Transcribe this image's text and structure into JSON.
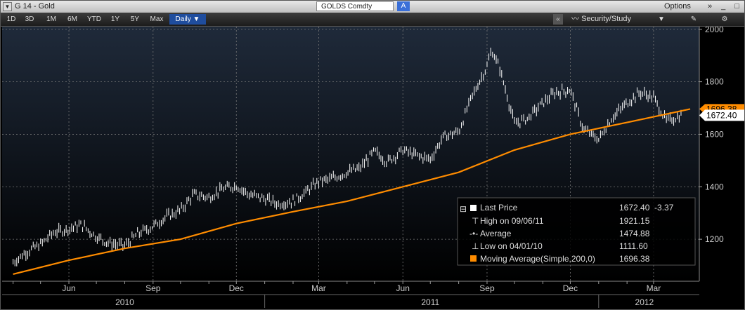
{
  "window": {
    "title": "G 14 - Gold",
    "ticker": "GOLDS Comdty",
    "ticker_badge": "A",
    "options_label": "Options",
    "controls": "» _ □ ×",
    "menu_glyph": "▼"
  },
  "toolbar": {
    "periods": [
      "1D",
      "3D",
      "1M",
      "6M",
      "YTD",
      "1Y",
      "5Y",
      "Max"
    ],
    "frequency": "Daily ▼",
    "collapse": "«",
    "security_study": "Security/Study"
  },
  "colors": {
    "price": "#ffffff",
    "moving_average": "#ff8c00",
    "background": "#000000",
    "plot_top": "#1f2a3a"
  },
  "chart_data": {
    "type": "line",
    "x_unit": "month",
    "x_axis_months": [
      "Jun",
      "Sep",
      "Dec",
      "Mar",
      "Jun",
      "Sep",
      "Dec",
      "Mar"
    ],
    "x_axis_years": [
      "2010",
      "2011",
      "2012"
    ],
    "y_ticks": [
      1200,
      1400,
      1600,
      1800,
      2000
    ],
    "ylim": [
      1040,
      2010
    ],
    "grid": true,
    "series": [
      {
        "name": "Last Price",
        "type": "ohlc",
        "x": [
          "2010-04-01",
          "2010-04-15",
          "2010-05-01",
          "2010-05-15",
          "2010-06-01",
          "2010-06-15",
          "2010-07-01",
          "2010-07-15",
          "2010-08-01",
          "2010-08-15",
          "2010-09-01",
          "2010-09-15",
          "2010-10-01",
          "2010-10-15",
          "2010-11-01",
          "2010-11-15",
          "2010-12-01",
          "2010-12-15",
          "2011-01-01",
          "2011-01-15",
          "2011-02-01",
          "2011-02-15",
          "2011-03-01",
          "2011-03-15",
          "2011-04-01",
          "2011-04-15",
          "2011-05-01",
          "2011-05-15",
          "2011-06-01",
          "2011-06-15",
          "2011-07-01",
          "2011-07-15",
          "2011-08-01",
          "2011-08-15",
          "2011-09-01",
          "2011-09-06",
          "2011-09-15",
          "2011-10-01",
          "2011-10-15",
          "2011-11-01",
          "2011-11-15",
          "2011-12-01",
          "2011-12-15",
          "2012-01-01",
          "2012-01-15",
          "2012-02-01",
          "2012-02-15",
          "2012-03-01",
          "2012-03-15",
          "2012-04-01"
        ],
        "y": [
          1112,
          1150,
          1180,
          1225,
          1240,
          1255,
          1210,
          1185,
          1175,
          1220,
          1250,
          1285,
          1310,
          1370,
          1360,
          1390,
          1405,
          1370,
          1355,
          1335,
          1345,
          1380,
          1420,
          1430,
          1455,
          1470,
          1535,
          1495,
          1540,
          1520,
          1505,
          1590,
          1610,
          1740,
          1860,
          1921,
          1850,
          1640,
          1660,
          1720,
          1760,
          1770,
          1620,
          1580,
          1660,
          1720,
          1760,
          1740,
          1650,
          1672.4
        ]
      },
      {
        "name": "Moving Average(Simple,200,0)",
        "type": "line",
        "x": [
          "2010-04-01",
          "2010-06-01",
          "2010-08-01",
          "2010-10-01",
          "2010-12-01",
          "2011-02-01",
          "2011-04-01",
          "2011-06-01",
          "2011-08-01",
          "2011-10-01",
          "2011-12-01",
          "2012-02-01",
          "2012-04-10"
        ],
        "y": [
          1067,
          1120,
          1165,
          1200,
          1260,
          1305,
          1345,
          1400,
          1455,
          1540,
          1600,
          1645,
          1696.38
        ]
      }
    ],
    "last_price_label": "1672.40",
    "ma_label": "1696.38"
  },
  "legend": [
    {
      "label": "Last Price",
      "value": "1672.40  -3.37",
      "marker": "square-white"
    },
    {
      "label": "High on 09/06/11",
      "value": "1921.15",
      "marker": "high"
    },
    {
      "label": "Average",
      "value": "1474.88",
      "marker": "avg"
    },
    {
      "label": "Low on 04/01/10",
      "value": "1111.60",
      "marker": "low"
    },
    {
      "label": "Moving Average(Simple,200,0)",
      "value": "1696.38",
      "marker": "square-orange"
    }
  ],
  "legend_collapse": "⊟"
}
